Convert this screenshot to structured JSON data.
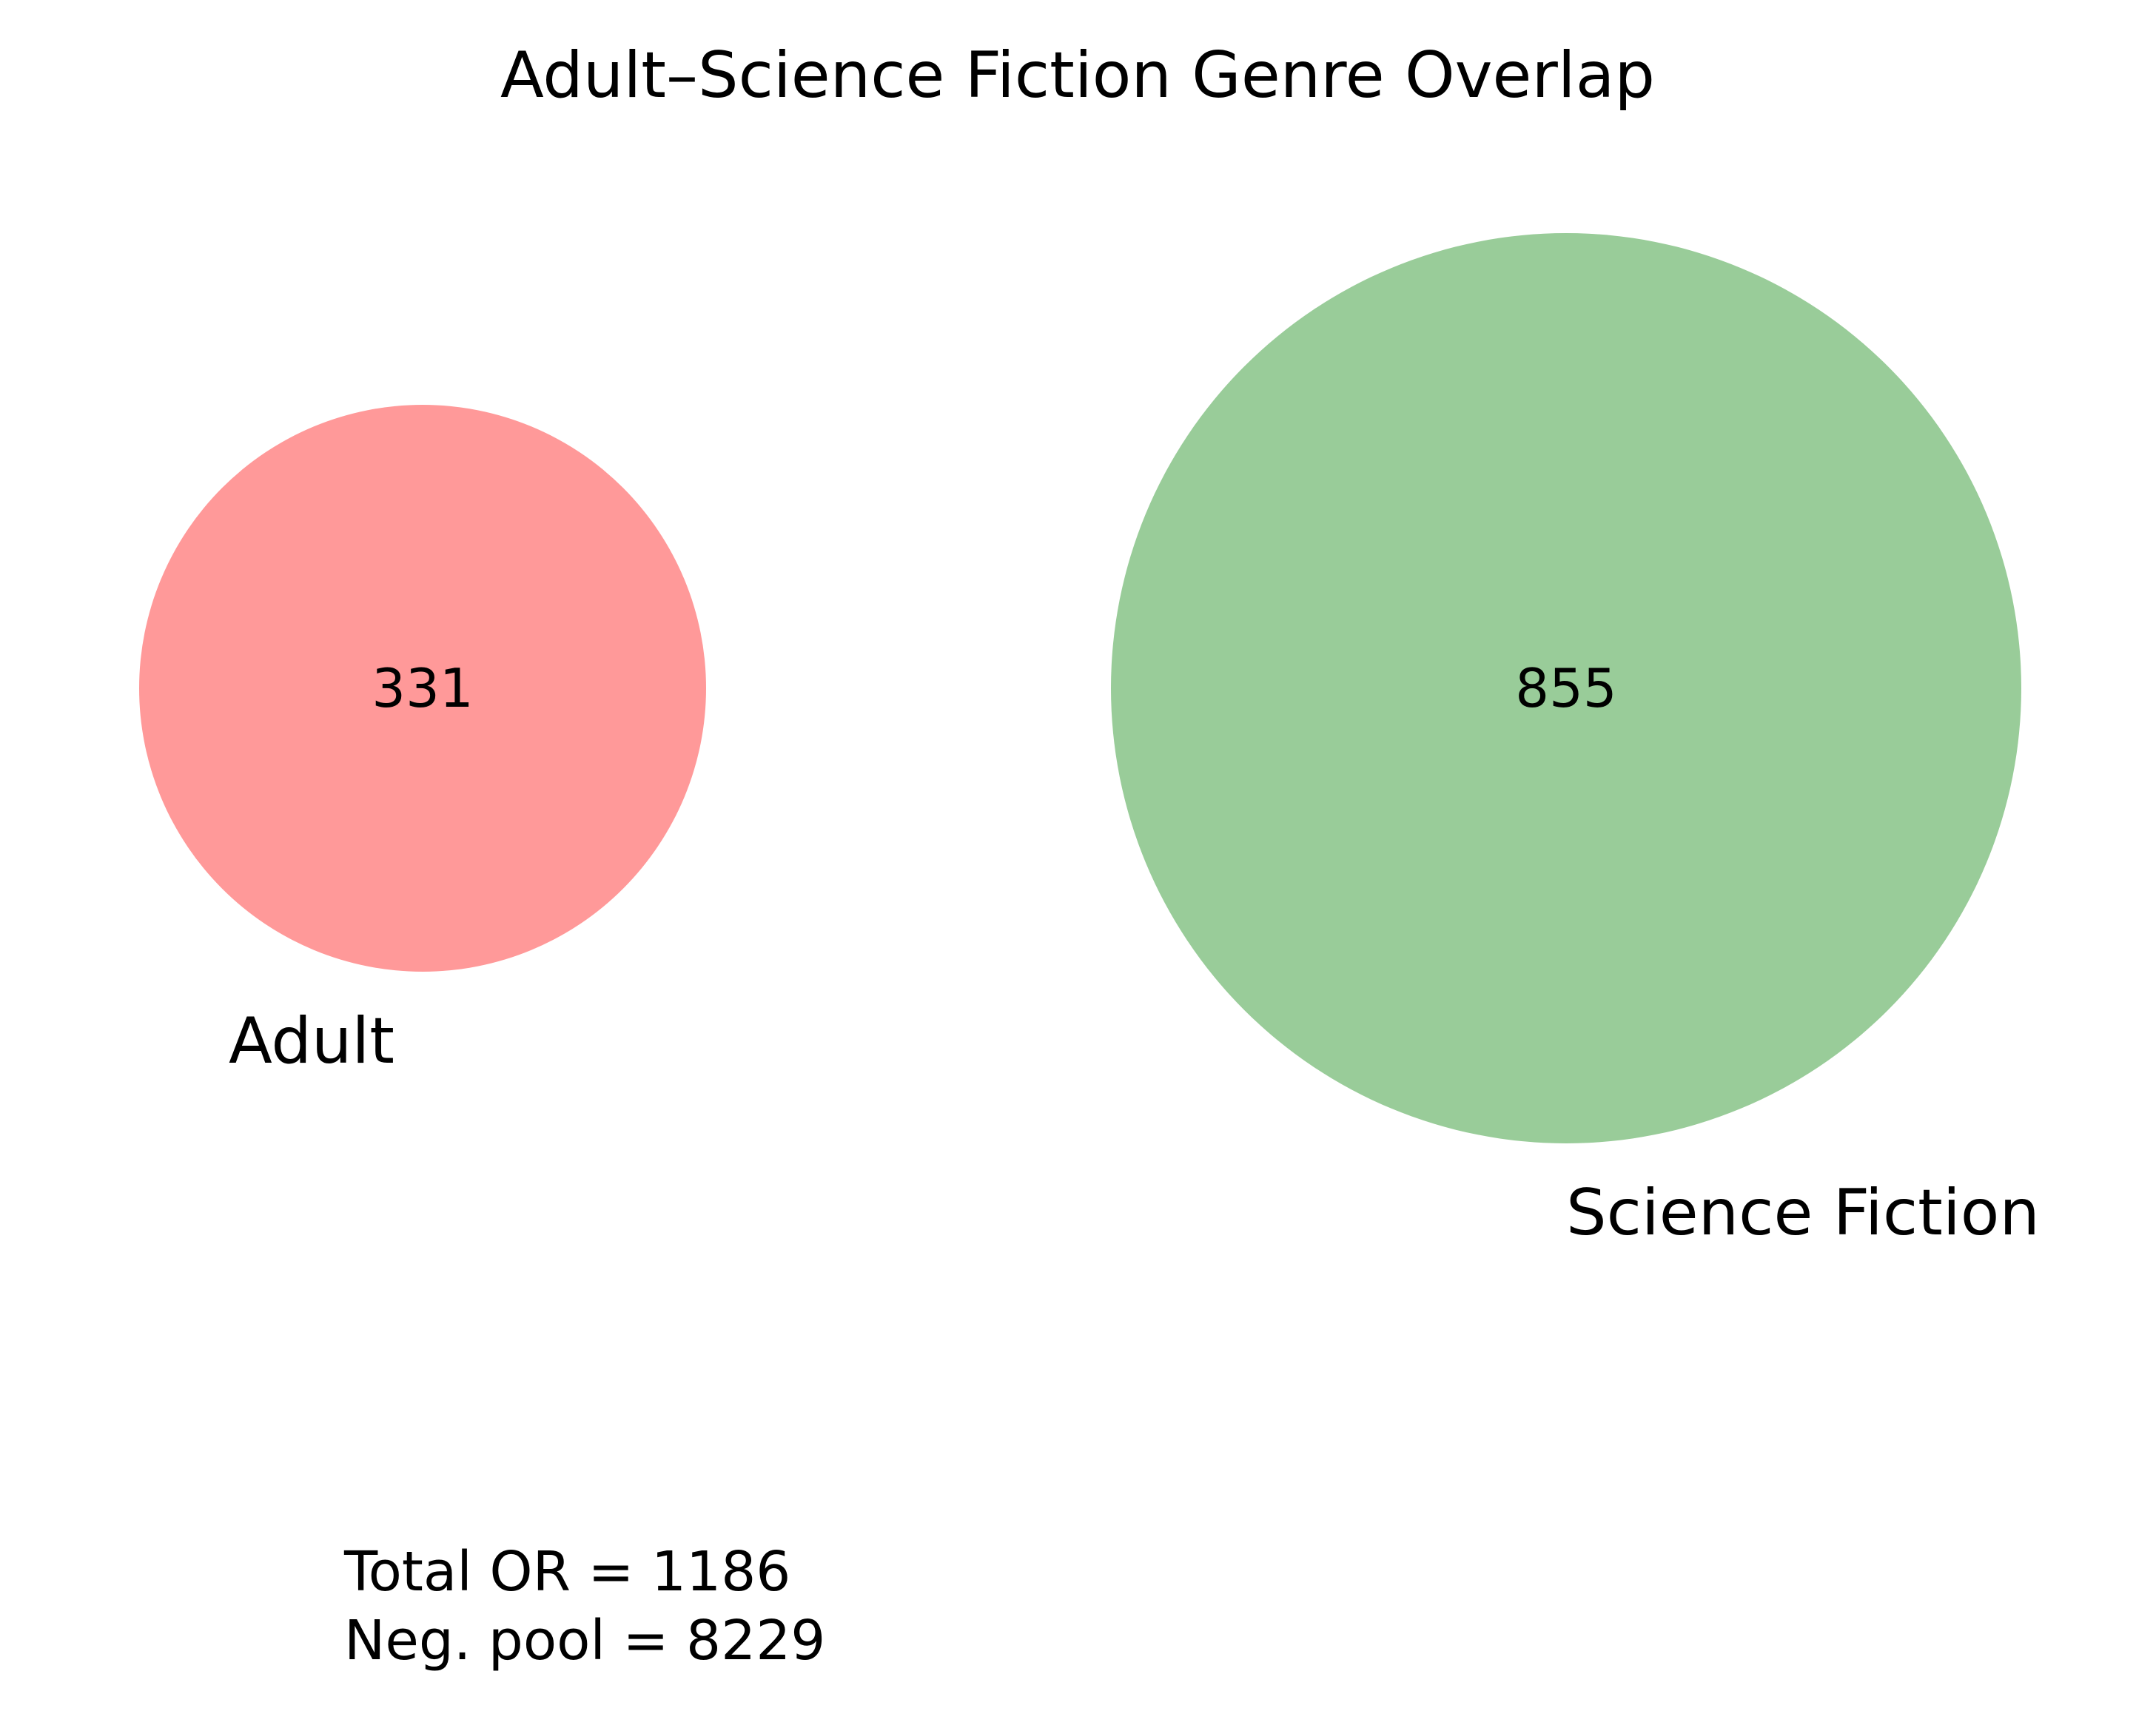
{
  "chart_data": {
    "type": "venn",
    "title": "Adult–Science Fiction Genre Overlap",
    "sets": [
      {
        "name": "Adult",
        "size": 331,
        "only_count": "331",
        "color": "#ff9999"
      },
      {
        "name": "Science Fiction",
        "size": 855,
        "only_count": "855",
        "color": "#99cc99"
      }
    ],
    "intersection": 0,
    "stats": [
      "Total OR = 1186",
      "Neg. pool = 8229"
    ]
  }
}
